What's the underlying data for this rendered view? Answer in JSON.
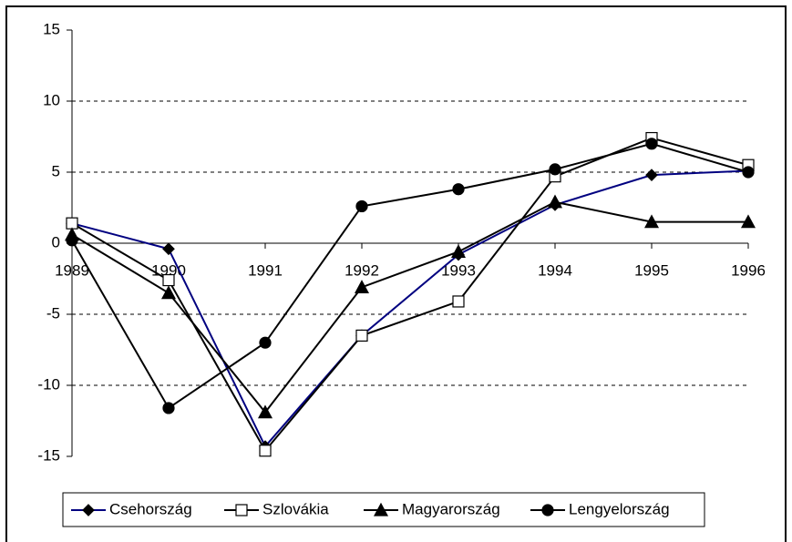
{
  "chart_data": {
    "type": "line",
    "categories": [
      "1989",
      "1990",
      "1991",
      "1992",
      "1993",
      "1994",
      "1995",
      "1996"
    ],
    "series": [
      {
        "name": "Csehország",
        "color": "#000080",
        "marker": "diamond",
        "values": [
          1.4,
          -0.4,
          -14.3,
          -6.5,
          -0.8,
          2.7,
          4.8,
          5.1
        ]
      },
      {
        "name": "Szlovákia",
        "color": "#000000",
        "marker": "square",
        "values": [
          1.4,
          -2.6,
          -14.6,
          -6.5,
          -4.1,
          4.7,
          7.4,
          5.5
        ]
      },
      {
        "name": "Magyarország",
        "color": "#000000",
        "marker": "triangle",
        "values": [
          0.6,
          -3.5,
          -11.9,
          -3.1,
          -0.6,
          2.9,
          1.5,
          1.5
        ]
      },
      {
        "name": "Lengyelország",
        "color": "#000000",
        "marker": "circle",
        "values": [
          0.2,
          -11.6,
          -7.0,
          2.6,
          3.8,
          5.2,
          7.0,
          5.0
        ]
      }
    ],
    "ylim": [
      -15,
      15
    ],
    "yticks": [
      -15,
      -10,
      -5,
      0,
      5,
      10,
      15
    ],
    "grid": true,
    "legend": "bottom"
  }
}
